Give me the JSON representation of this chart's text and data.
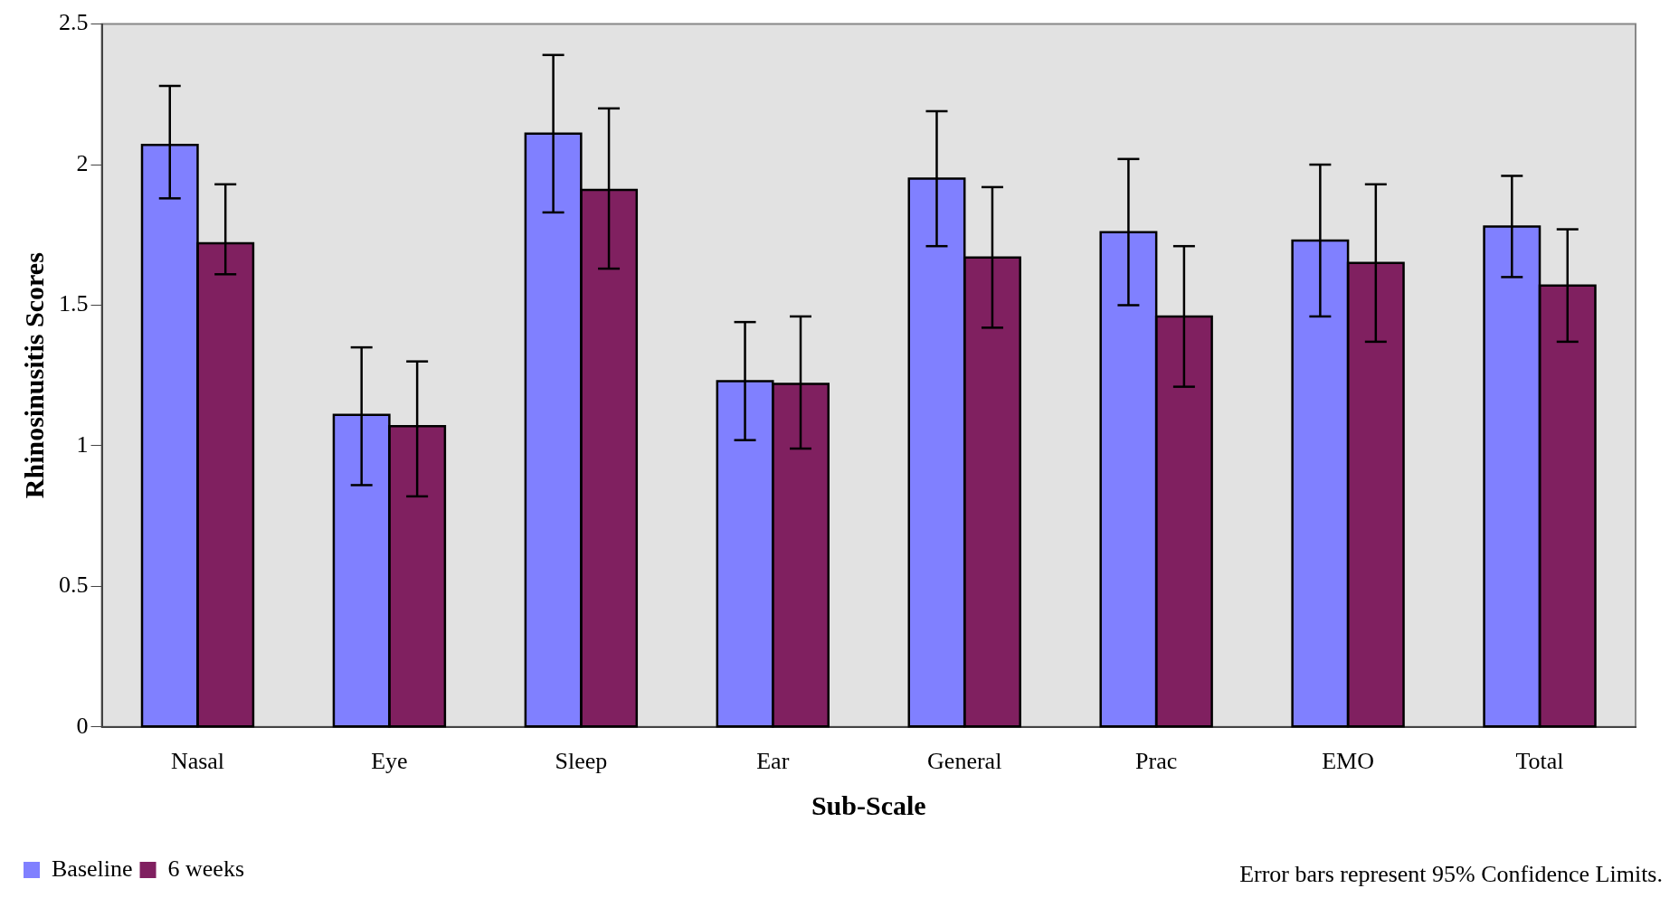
{
  "chart_data": {
    "type": "bar",
    "xlabel": "Sub-Scale",
    "ylabel": "Rhinosinusitis Scores",
    "categories": [
      "Nasal",
      "Eye",
      "Sleep",
      "Ear",
      "General",
      "Prac",
      "EMO",
      "Total"
    ],
    "series": [
      {
        "name": "Baseline",
        "color": "#8080ff",
        "values": [
          2.07,
          1.11,
          2.11,
          1.23,
          1.95,
          1.76,
          1.73,
          1.78
        ],
        "errors": [
          [
            1.88,
            2.28
          ],
          [
            0.86,
            1.35
          ],
          [
            1.83,
            2.39
          ],
          [
            1.02,
            1.44
          ],
          [
            1.71,
            2.19
          ],
          [
            1.5,
            2.02
          ],
          [
            1.46,
            2.0
          ],
          [
            1.6,
            1.96
          ]
        ]
      },
      {
        "name": "6 weeks",
        "color": "#802060",
        "values": [
          1.72,
          1.07,
          1.91,
          1.22,
          1.67,
          1.46,
          1.65,
          1.57
        ],
        "errors": [
          [
            1.61,
            1.93
          ],
          [
            0.82,
            1.3
          ],
          [
            1.63,
            2.2
          ],
          [
            0.99,
            1.46
          ],
          [
            1.42,
            1.92
          ],
          [
            1.21,
            1.71
          ],
          [
            1.37,
            1.93
          ],
          [
            1.37,
            1.77
          ]
        ]
      }
    ],
    "ylim": [
      0,
      2.5
    ],
    "yticks": [
      0,
      0.5,
      1,
      1.5,
      2,
      2.5
    ],
    "grid": false,
    "legend": "bottom left",
    "annotations": [
      "Error bars represent 95% Confidence Limits."
    ]
  }
}
